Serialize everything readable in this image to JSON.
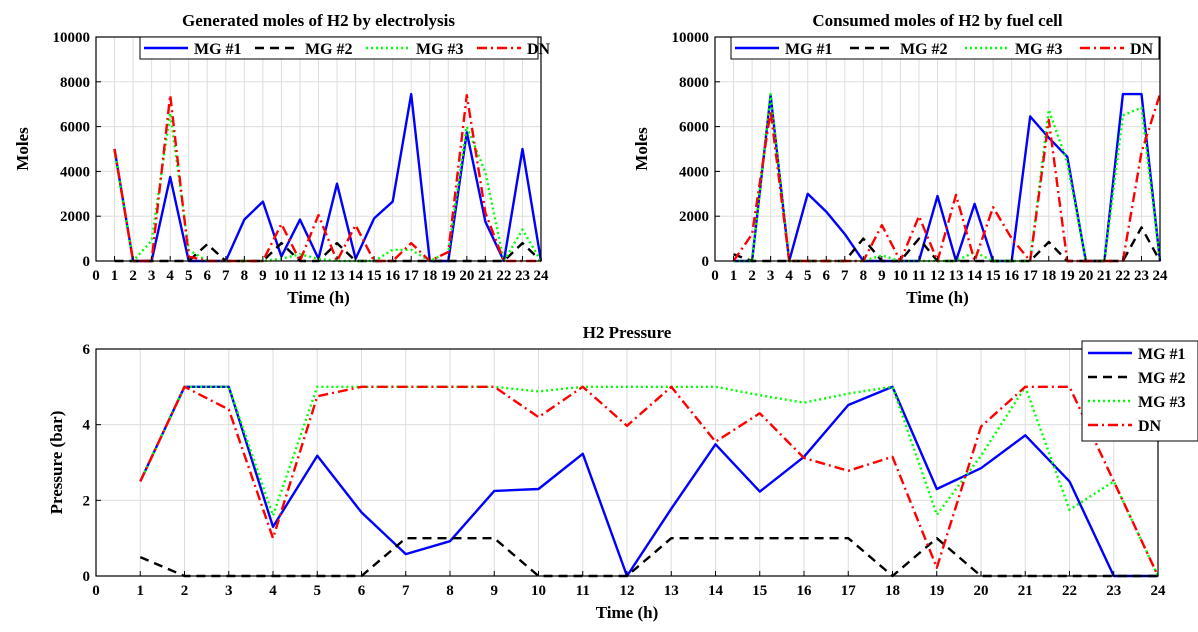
{
  "colors": {
    "mg1": "#0000ff",
    "mg2": "#000000",
    "mg3": "#00ff00",
    "dn": "#ff0000"
  },
  "chart_data": [
    {
      "type": "line",
      "title": "Generated moles of H2 by electrolysis",
      "xlabel": "Time (h)",
      "ylabel": "Moles",
      "xlim": [
        0,
        24
      ],
      "ylim": [
        0,
        10000
      ],
      "xticks": [
        "0",
        "1",
        "2",
        "3",
        "4",
        "5",
        "6",
        "7",
        "8",
        "9",
        "10",
        "11",
        "12",
        "13",
        "14",
        "15",
        "16",
        "17",
        "18",
        "19",
        "20",
        "21",
        "22",
        "23",
        "24"
      ],
      "yticks": [
        "0",
        "2000",
        "4000",
        "6000",
        "8000",
        "10000"
      ],
      "grid": true,
      "legend": "top, horizontal",
      "x": [
        1,
        2,
        3,
        4,
        5,
        6,
        7,
        8,
        9,
        10,
        11,
        12,
        13,
        14,
        15,
        16,
        17,
        18,
        19,
        20,
        21,
        22,
        23,
        24
      ],
      "series": [
        {
          "name": "MG #1",
          "style": "solid",
          "values": [
            5000,
            0,
            0,
            3750,
            0,
            0,
            0,
            1850,
            2650,
            200,
            1850,
            100,
            3450,
            100,
            1900,
            2650,
            7450,
            0,
            0,
            5750,
            1750,
            0,
            5000,
            0
          ]
        },
        {
          "name": "MG #2",
          "style": "dash",
          "values": [
            0,
            0,
            0,
            0,
            0,
            750,
            0,
            0,
            0,
            800,
            0,
            0,
            800,
            0,
            0,
            0,
            0,
            0,
            0,
            0,
            0,
            0,
            800,
            0
          ]
        },
        {
          "name": "MG #3",
          "style": "dot",
          "values": [
            4900,
            0,
            900,
            6600,
            500,
            0,
            0,
            0,
            0,
            100,
            300,
            100,
            0,
            0,
            0,
            500,
            500,
            0,
            400,
            6000,
            3950,
            0,
            1400,
            0
          ]
        },
        {
          "name": "DN",
          "style": "dashdot",
          "values": [
            5000,
            0,
            0,
            7400,
            200,
            0,
            0,
            0,
            0,
            1650,
            0,
            2050,
            0,
            1600,
            0,
            0,
            800,
            0,
            400,
            7400,
            2150,
            0,
            0,
            0
          ]
        }
      ]
    },
    {
      "type": "line",
      "title": "Consumed moles of H2 by fuel cell",
      "xlabel": "Time (h)",
      "ylabel": "Moles",
      "xlim": [
        0,
        24
      ],
      "ylim": [
        0,
        10000
      ],
      "xticks": [
        "0",
        "1",
        "2",
        "3",
        "4",
        "5",
        "6",
        "7",
        "8",
        "9",
        "10",
        "11",
        "12",
        "13",
        "14",
        "15",
        "16",
        "17",
        "18",
        "19",
        "20",
        "21",
        "22",
        "23",
        "24"
      ],
      "yticks": [
        "0",
        "2000",
        "4000",
        "6000",
        "8000",
        "10000"
      ],
      "grid": true,
      "legend": "top, horizontal",
      "x": [
        1,
        2,
        3,
        4,
        5,
        6,
        7,
        8,
        9,
        10,
        11,
        12,
        13,
        14,
        15,
        16,
        17,
        18,
        19,
        20,
        21,
        22,
        23,
        24
      ],
      "series": [
        {
          "name": "MG #1",
          "style": "solid",
          "values": [
            0,
            0,
            7400,
            0,
            3000,
            2200,
            1200,
            0,
            0,
            0,
            0,
            2900,
            0,
            2550,
            0,
            0,
            6450,
            5500,
            4650,
            0,
            0,
            7450,
            7450,
            0
          ]
        },
        {
          "name": "MG #2",
          "style": "dash",
          "values": [
            300,
            0,
            0,
            0,
            0,
            0,
            0,
            1000,
            0,
            0,
            1000,
            0,
            0,
            0,
            0,
            0,
            0,
            850,
            0,
            0,
            0,
            0,
            1500,
            0
          ]
        },
        {
          "name": "MG #3",
          "style": "dot",
          "values": [
            0,
            0,
            7450,
            0,
            0,
            0,
            0,
            0,
            250,
            0,
            0,
            0,
            0,
            400,
            0,
            0,
            0,
            6750,
            4400,
            0,
            0,
            6500,
            6850,
            0
          ]
        },
        {
          "name": "DN",
          "style": "dashdot",
          "values": [
            0,
            1200,
            6700,
            0,
            0,
            0,
            0,
            0,
            1600,
            0,
            2000,
            0,
            2950,
            0,
            2400,
            1000,
            0,
            6300,
            0,
            0,
            0,
            0,
            4850,
            7450
          ]
        }
      ]
    },
    {
      "type": "line",
      "title": "H2 Pressure",
      "xlabel": "Time (h)",
      "ylabel": "Pressure (bar)",
      "xlim": [
        0,
        24
      ],
      "ylim": [
        0,
        6
      ],
      "xticks": [
        "0",
        "1",
        "2",
        "3",
        "4",
        "5",
        "6",
        "7",
        "8",
        "9",
        "10",
        "11",
        "12",
        "13",
        "14",
        "15",
        "16",
        "17",
        "18",
        "19",
        "20",
        "21",
        "22",
        "23",
        "24"
      ],
      "yticks": [
        "0",
        "2",
        "4",
        "6"
      ],
      "grid": true,
      "legend": "right, outside",
      "x": [
        1,
        2,
        3,
        4,
        5,
        6,
        7,
        8,
        9,
        10,
        11,
        12,
        13,
        14,
        15,
        16,
        17,
        18,
        19,
        20,
        21,
        22,
        23,
        24
      ],
      "series": [
        {
          "name": "MG #1",
          "style": "solid",
          "values": [
            2.5,
            5.0,
            5.0,
            1.3,
            3.18,
            1.68,
            0.58,
            0.92,
            2.25,
            2.3,
            3.23,
            0.0,
            1.78,
            3.48,
            2.23,
            3.15,
            4.52,
            5.0,
            2.3,
            2.85,
            3.72,
            2.5,
            0.0,
            0.0
          ]
        },
        {
          "name": "MG #2",
          "style": "dash",
          "values": [
            0.5,
            0,
            0,
            0,
            0,
            0,
            1,
            1,
            1,
            0,
            0,
            0,
            1,
            1,
            1,
            1,
            1,
            0,
            1,
            0,
            0,
            0,
            0,
            0
          ]
        },
        {
          "name": "MG #3",
          "style": "dot",
          "values": [
            2.5,
            5.0,
            5.0,
            1.6,
            5.0,
            5.0,
            5.0,
            5.0,
            5.0,
            4.88,
            5.0,
            5.0,
            5.0,
            5.0,
            4.78,
            4.58,
            4.82,
            5.0,
            1.62,
            3.18,
            5.0,
            1.75,
            2.5,
            0.0
          ]
        },
        {
          "name": "DN",
          "style": "dashdot",
          "values": [
            2.5,
            5.0,
            4.4,
            1.0,
            4.75,
            5.0,
            5.0,
            5.0,
            5.0,
            4.2,
            5.0,
            3.97,
            5.0,
            3.55,
            4.3,
            3.12,
            2.78,
            3.15,
            0.22,
            3.95,
            5.0,
            5.0,
            2.5,
            0.0
          ]
        }
      ]
    }
  ]
}
